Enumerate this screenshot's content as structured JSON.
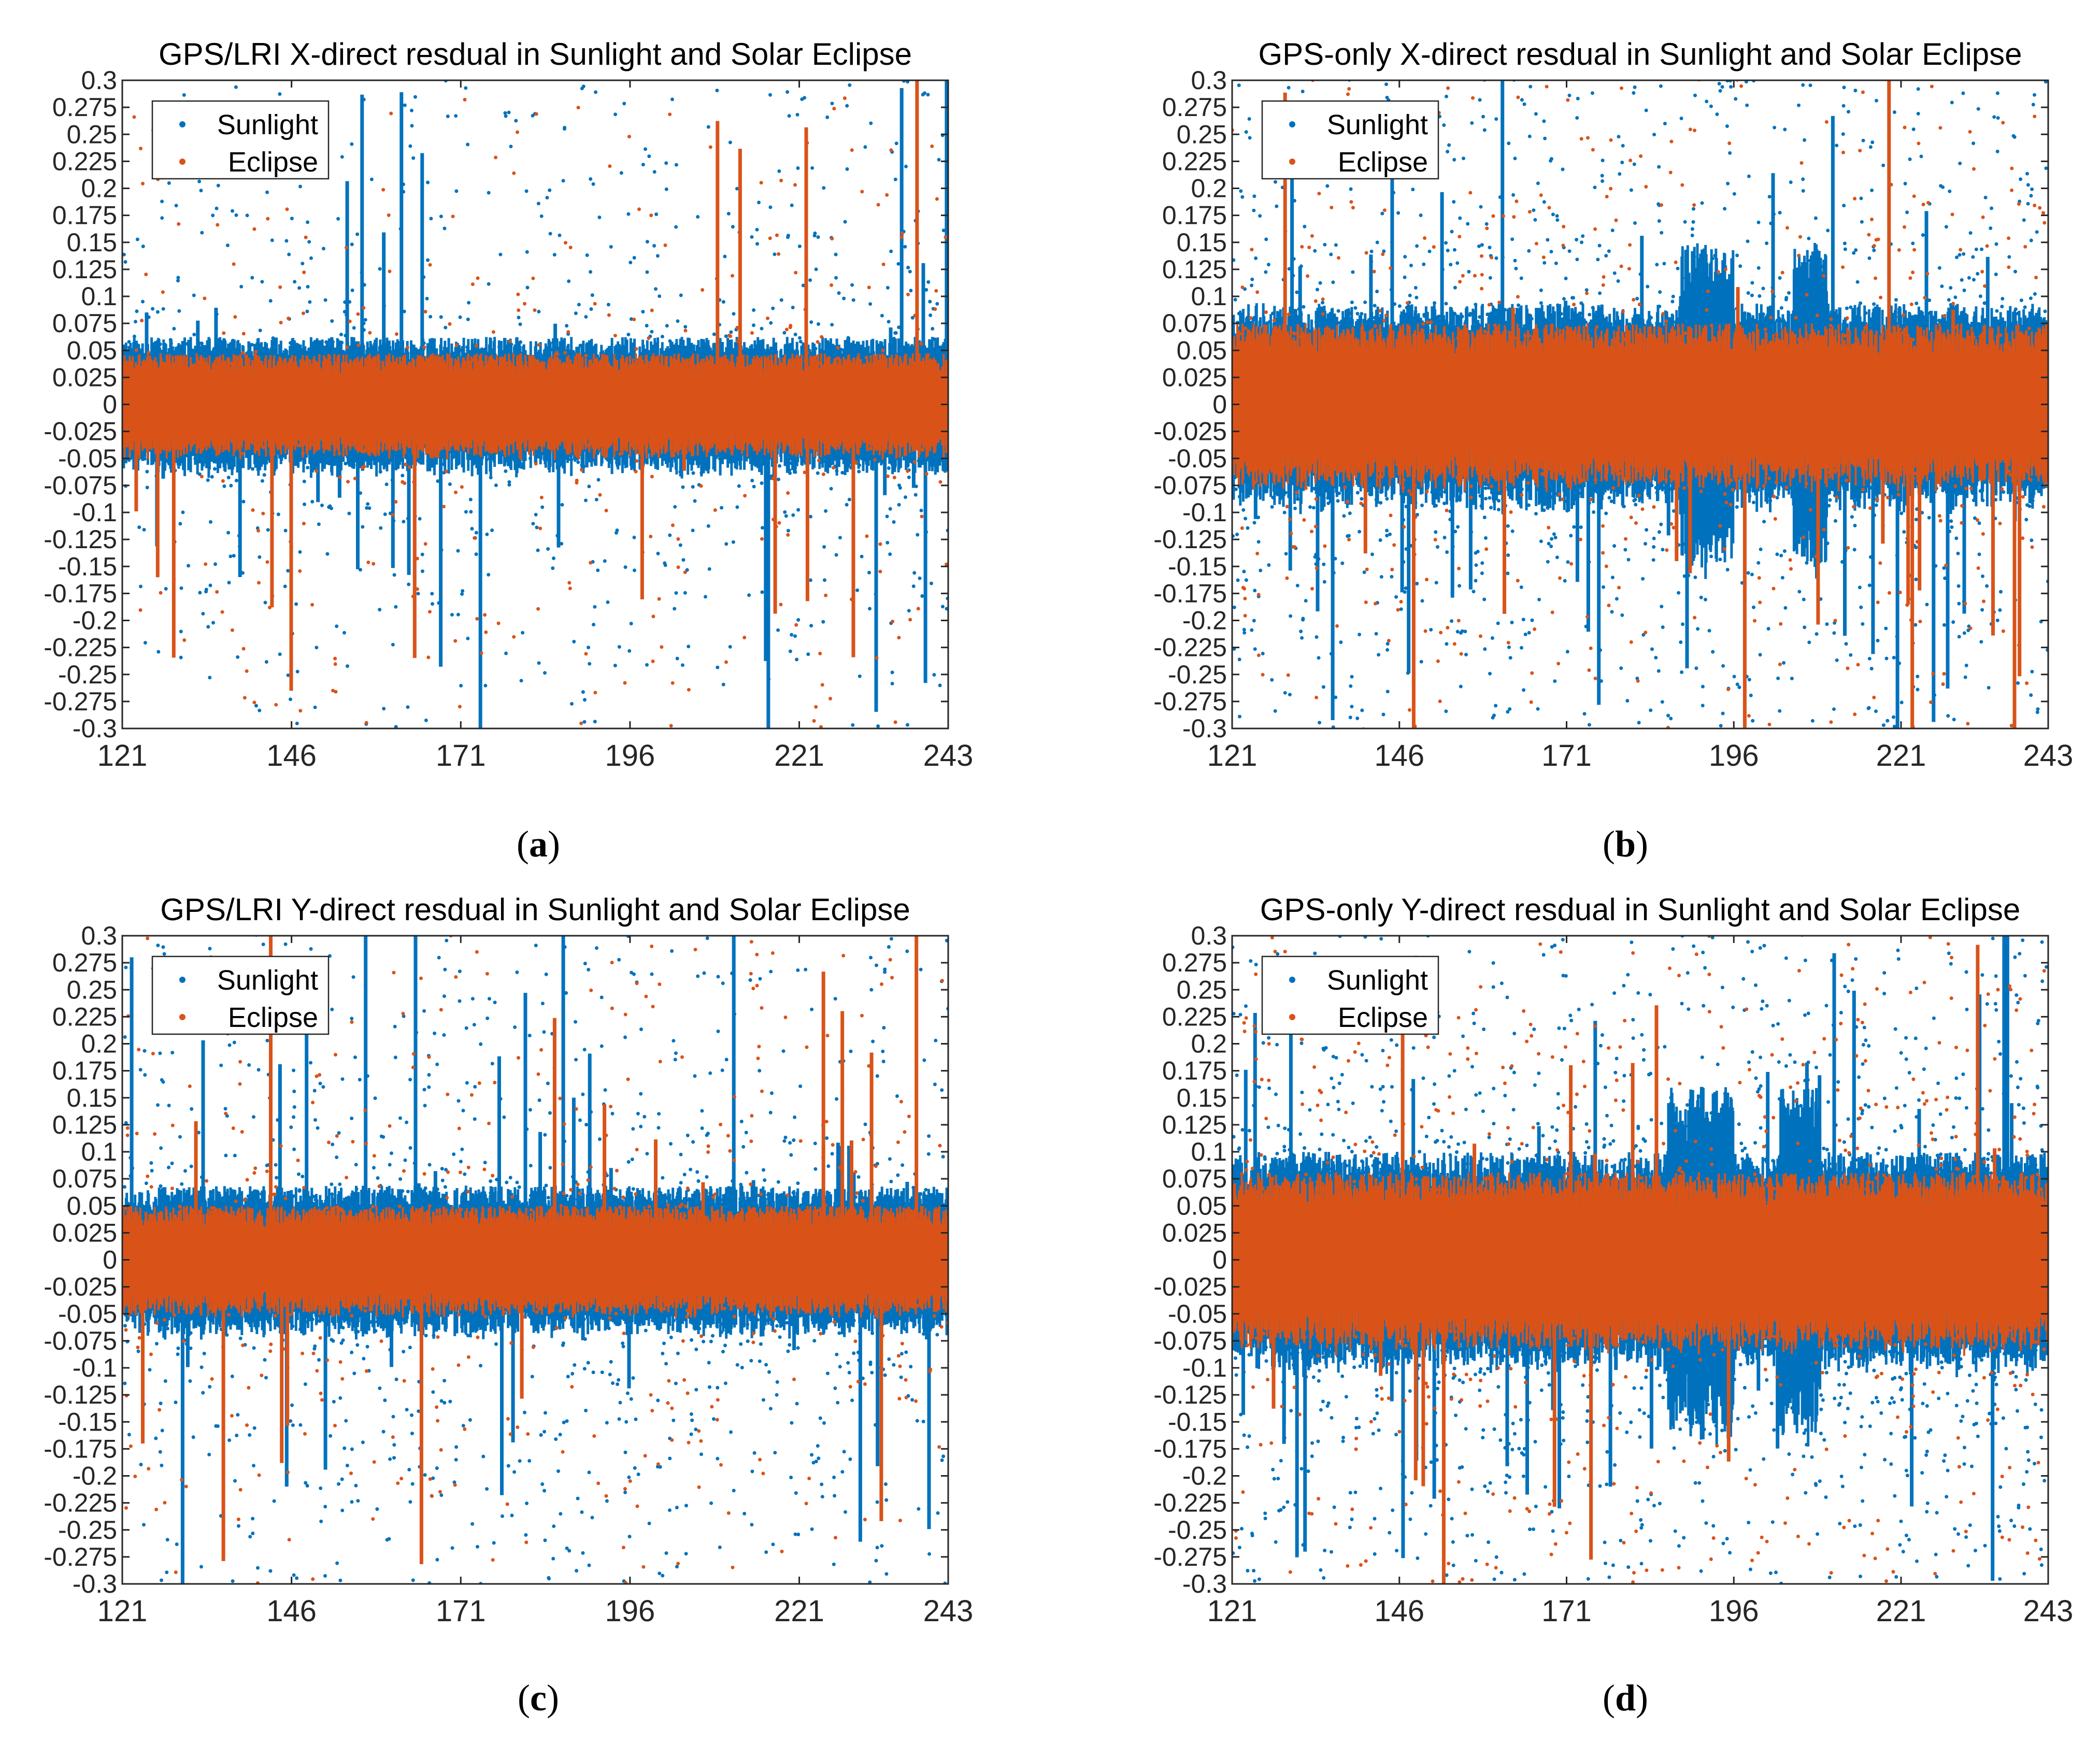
{
  "colors": {
    "sunlight": "#0072BD",
    "eclipse": "#D95319",
    "axis": "#262626"
  },
  "chart_data": [
    {
      "type": "scatter",
      "panel": "a",
      "caption_letter": "a",
      "title": "GPS/LRI X-direct resdual in Sunlight and Solar Eclipse",
      "xlabel": "",
      "ylabel": "",
      "xlim": [
        121,
        243
      ],
      "ylim": [
        -0.3,
        0.3
      ],
      "xticks": [
        "121",
        "146",
        "171",
        "196",
        "221",
        "243"
      ],
      "yticks": [
        "0.3",
        "0.275",
        "0.25",
        "0.225",
        "0.2",
        "0.175",
        "0.15",
        "0.125",
        "0.1",
        "0.075",
        "0.05",
        "0.025",
        "0",
        "-0.025",
        "-0.05",
        "-0.075",
        "-0.1",
        "-0.125",
        "-0.15",
        "-0.175",
        "-0.2",
        "-0.225",
        "-0.25",
        "-0.275",
        "-0.3"
      ],
      "legend": [
        "Sunlight",
        "Eclipse"
      ],
      "legend_position": "top-left",
      "series": [
        {
          "name": "Sunlight",
          "band": 0.05,
          "outlier_density": 0.55,
          "hot_ranges": []
        },
        {
          "name": "Eclipse",
          "band": 0.038,
          "outlier_density": 0.25,
          "hot_ranges": []
        }
      ],
      "seed": 11
    },
    {
      "type": "scatter",
      "panel": "b",
      "caption_letter": "b",
      "title": "GPS-only X-direct resdual in Sunlight and Solar Eclipse",
      "xlabel": "",
      "ylabel": "",
      "xlim": [
        121,
        243
      ],
      "ylim": [
        -0.3,
        0.3
      ],
      "xticks": [
        "121",
        "146",
        "171",
        "196",
        "221",
        "243"
      ],
      "yticks": [
        "0.3",
        "0.275",
        "0.25",
        "0.225",
        "0.2",
        "0.175",
        "0.15",
        "0.125",
        "0.1",
        "0.075",
        "0.05",
        "0.025",
        "0",
        "-0.025",
        "-0.05",
        "-0.075",
        "-0.1",
        "-0.125",
        "-0.15",
        "-0.175",
        "-0.2",
        "-0.225",
        "-0.25",
        "-0.275",
        "-0.3"
      ],
      "legend": [
        "Sunlight",
        "Eclipse"
      ],
      "legend_position": "top-left",
      "series": [
        {
          "name": "Sunlight",
          "band": 0.075,
          "outlier_density": 0.8,
          "hot_ranges": [
            [
              188,
              196
            ],
            [
              205,
              210
            ]
          ]
        },
        {
          "name": "Eclipse",
          "band": 0.06,
          "outlier_density": 0.35,
          "hot_ranges": []
        }
      ],
      "seed": 23
    },
    {
      "type": "scatter",
      "panel": "c",
      "caption_letter": "c",
      "title": "GPS/LRI Y-direct resdual in Sunlight and Solar Eclipse",
      "xlabel": "",
      "ylabel": "",
      "xlim": [
        121,
        243
      ],
      "ylim": [
        -0.3,
        0.3
      ],
      "xticks": [
        "121",
        "146",
        "171",
        "196",
        "221",
        "243"
      ],
      "yticks": [
        "0.3",
        "0.275",
        "0.25",
        "0.225",
        "0.2",
        "0.175",
        "0.15",
        "0.125",
        "0.1",
        "0.075",
        "0.05",
        "0.025",
        "0",
        "-0.025",
        "-0.05",
        "-0.075",
        "-0.1",
        "-0.125",
        "-0.15",
        "-0.175",
        "-0.2",
        "-0.225",
        "-0.25",
        "-0.275",
        "-0.3"
      ],
      "legend": [
        "Sunlight",
        "Eclipse"
      ],
      "legend_position": "top-left",
      "series": [
        {
          "name": "Sunlight",
          "band": 0.055,
          "outlier_density": 0.65,
          "hot_ranges": []
        },
        {
          "name": "Eclipse",
          "band": 0.04,
          "outlier_density": 0.3,
          "hot_ranges": []
        }
      ],
      "seed": 37
    },
    {
      "type": "scatter",
      "panel": "d",
      "caption_letter": "d",
      "title": "GPS-only Y-direct resdual in Sunlight and Solar Eclipse",
      "xlabel": "",
      "ylabel": "",
      "xlim": [
        121,
        243
      ],
      "ylim": [
        -0.3,
        0.3
      ],
      "xticks": [
        "121",
        "146",
        "171",
        "196",
        "221",
        "243"
      ],
      "yticks": [
        "0.3",
        "0.275",
        "0.25",
        "0.225",
        "0.2",
        "0.175",
        "0.15",
        "0.125",
        "0.1",
        "0.075",
        "0.05",
        "0.025",
        "0",
        "-0.025",
        "-0.05",
        "-0.075",
        "-0.1",
        "-0.125",
        "-0.15",
        "-0.175",
        "-0.2",
        "-0.225",
        "-0.25",
        "-0.275",
        "-0.3"
      ],
      "legend": [
        "Sunlight",
        "Eclipse"
      ],
      "legend_position": "top-left",
      "series": [
        {
          "name": "Sunlight",
          "band": 0.08,
          "outlier_density": 0.85,
          "hot_ranges": [
            [
              186,
              196
            ],
            [
              203,
              209
            ]
          ]
        },
        {
          "name": "Eclipse",
          "band": 0.065,
          "outlier_density": 0.4,
          "hot_ranges": []
        }
      ],
      "seed": 53
    }
  ]
}
